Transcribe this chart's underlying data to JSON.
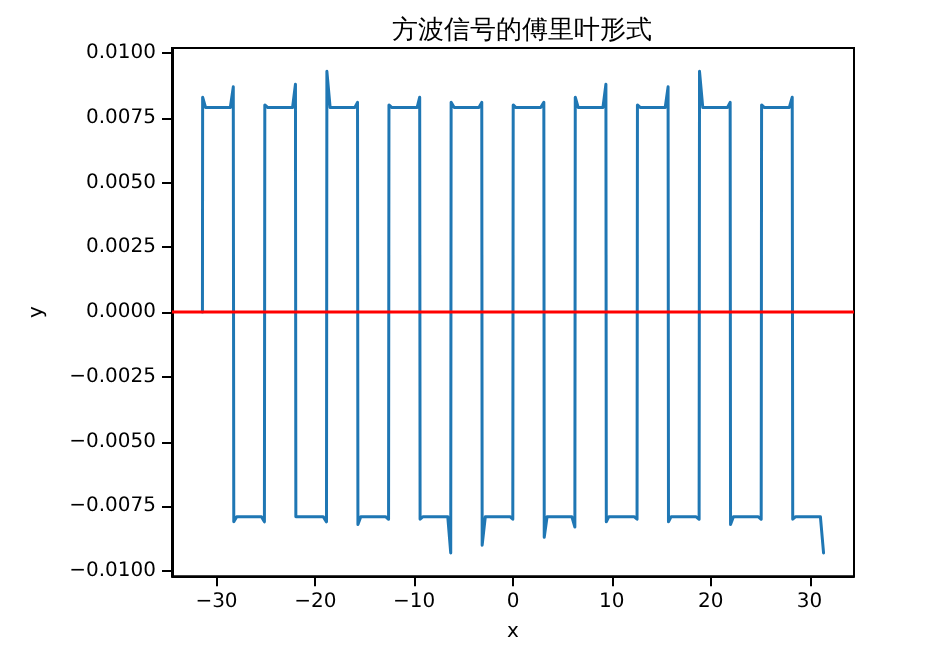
{
  "chart_data": {
    "type": "line",
    "title": "方波信号的傅里叶形式",
    "xlabel": "x",
    "ylabel": "y",
    "xlim": [
      -34.5,
      34.5
    ],
    "xticks": [
      {
        "value": -30,
        "label": "−30"
      },
      {
        "value": -20,
        "label": "−20"
      },
      {
        "value": -10,
        "label": "−10"
      },
      0,
      10,
      20,
      30
    ],
    "ylim": [
      -0.0102,
      0.0102
    ],
    "yticks": [
      {
        "value": -0.01,
        "label": "−0.0100"
      },
      {
        "value": -0.0075,
        "label": "−0.0075"
      },
      {
        "value": -0.005,
        "label": "−0.0050"
      },
      {
        "value": -0.0025,
        "label": "−0.0025"
      },
      {
        "value": 0,
        "label": "0.0000"
      },
      {
        "value": 0.0025,
        "label": "0.0025"
      },
      {
        "value": 0.005,
        "label": "0.0050"
      },
      {
        "value": 0.0075,
        "label": "0.0075"
      },
      {
        "value": 0.01,
        "label": "0.0100"
      }
    ],
    "grid": false,
    "marker": "none",
    "line_style": "solid",
    "ref_lines": [
      {
        "axis": "y",
        "value": 0,
        "color": "#ff0000"
      }
    ],
    "series": [
      {
        "color": "#1f77b4",
        "x": [
          -31.42,
          -31.4,
          -31.1,
          -28.6,
          -28.3,
          -28.25,
          -27.95,
          -25.45,
          -25.15,
          -25.11,
          -24.8,
          -22.3,
          -22.01,
          -21.97,
          -21.7,
          -19.2,
          -18.87,
          -18.83,
          -18.5,
          -16.0,
          -15.73,
          -15.69,
          -15.4,
          -12.9,
          -12.59,
          -12.55,
          -12.25,
          -9.7,
          -9.44,
          -9.4,
          -9.1,
          -6.6,
          -6.3,
          -6.26,
          -5.95,
          -3.45,
          -3.16,
          -3.12,
          -2.8,
          -0.3,
          -0.02,
          0.02,
          0.3,
          2.8,
          3.12,
          3.16,
          3.45,
          5.95,
          6.26,
          6.3,
          6.6,
          9.1,
          9.4,
          9.44,
          9.7,
          12.25,
          12.55,
          12.59,
          12.9,
          15.4,
          15.69,
          15.73,
          16.0,
          18.5,
          18.83,
          18.87,
          19.2,
          21.7,
          21.97,
          22.01,
          22.3,
          24.8,
          25.11,
          25.15,
          25.45,
          27.95,
          28.25,
          28.3,
          28.6,
          31.1,
          31.42
        ],
        "values": [
          0,
          0.0083,
          0.0079,
          0.0079,
          0.0087,
          -0.0081,
          -0.0079,
          -0.0079,
          -0.0081,
          0.008,
          0.0079,
          0.0079,
          0.0088,
          -0.0079,
          -0.0079,
          -0.0079,
          -0.0081,
          0.0093,
          0.0079,
          0.0079,
          0.0081,
          -0.0082,
          -0.0079,
          -0.0079,
          -0.008,
          0.008,
          0.0079,
          0.0079,
          0.0083,
          -0.008,
          -0.0079,
          -0.0079,
          -0.0093,
          0.0081,
          0.0079,
          0.0079,
          0.0081,
          -0.009,
          -0.0079,
          -0.0079,
          -0.008,
          0.008,
          0.0079,
          0.0079,
          0.0081,
          -0.0087,
          -0.0079,
          -0.0079,
          -0.0083,
          0.0083,
          0.0079,
          0.0079,
          0.0088,
          -0.0081,
          -0.0079,
          -0.0079,
          -0.008,
          0.008,
          0.0079,
          0.0079,
          0.0087,
          -0.0081,
          -0.0079,
          -0.0079,
          -0.008,
          0.0093,
          0.0079,
          0.0079,
          0.0081,
          -0.0082,
          -0.0079,
          -0.0079,
          -0.008,
          0.008,
          0.0079,
          0.0079,
          0.0083,
          -0.008,
          -0.0079,
          -0.0079,
          -0.0093
        ]
      }
    ]
  }
}
